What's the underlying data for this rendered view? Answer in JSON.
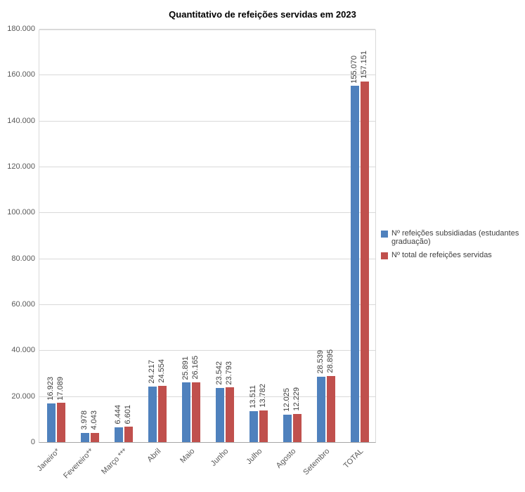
{
  "chart_data": {
    "type": "bar",
    "title": "Quantitativo de refeições servidas em 2023",
    "categories": [
      "Janeiro*",
      "Fevereiro**",
      "Março ***",
      "Abril",
      "Maio",
      "Junho",
      "Julho",
      "Agosto",
      "Setembro",
      "TOTAL"
    ],
    "series": [
      {
        "name": "Nº refeições subsidiadas (estudantes graduação)",
        "color": "#4f81bd",
        "values": [
          16923,
          3978,
          6444,
          24217,
          25891,
          23542,
          13511,
          12025,
          28539,
          155070
        ]
      },
      {
        "name": "Nº total de refeições servidas",
        "color": "#c0504d",
        "values": [
          17089,
          4043,
          6601,
          24554,
          26165,
          23793,
          13782,
          12229,
          28895,
          157151
        ]
      }
    ],
    "xlabel": "",
    "ylabel": "",
    "ylim": [
      0,
      180000
    ],
    "ytick_step": 20000,
    "grid": true,
    "legend_position": "right",
    "number_format": "thousands-dot",
    "data_labels": true
  }
}
